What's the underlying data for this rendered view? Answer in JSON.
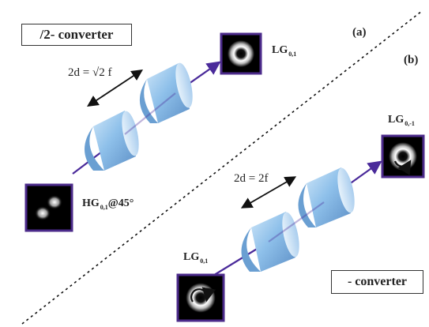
{
  "top_converter": {
    "label": "/2- converter",
    "panel": "(a)",
    "distance": "2d = √2 f"
  },
  "bottom_converter": {
    "label": "- converter",
    "panel": "(b)",
    "distance": "2d = 2f"
  },
  "beams": {
    "hg_input": {
      "name": "HG",
      "sub": "0,1",
      "suffix": "@45°"
    },
    "lg_output_a": {
      "name": "LG",
      "sub": "0,1"
    },
    "lg_input_b": {
      "name": "LG",
      "sub": "0,1"
    },
    "lg_output_b": {
      "name": "LG",
      "sub": "0,-1"
    }
  },
  "colors": {
    "beam_arrow": "#4a2a9a",
    "lens": "#7fb2df",
    "frame": "#4b2a8a"
  }
}
